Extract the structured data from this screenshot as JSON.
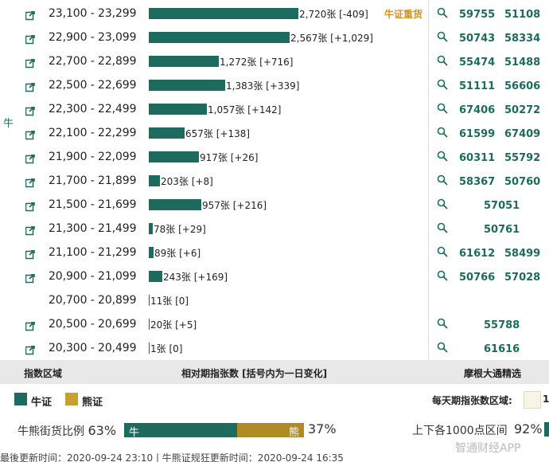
{
  "side_label": "牛",
  "rows": [
    {
      "range": "23,100 - 23,299",
      "bar_value": 2720,
      "bar_text": "2,720张 [-409]",
      "tag": "牛证重货",
      "codes": [
        "59755",
        "51108"
      ],
      "has_link": true,
      "has_search": true
    },
    {
      "range": "22,900 - 23,099",
      "bar_value": 2567,
      "bar_text": "2,567张 [+1,029]",
      "tag": "",
      "codes": [
        "50743",
        "58334"
      ],
      "has_link": true,
      "has_search": true
    },
    {
      "range": "22,700 - 22,899",
      "bar_value": 1272,
      "bar_text": "1,272张 [+716]",
      "tag": "",
      "codes": [
        "55474",
        "51488"
      ],
      "has_link": true,
      "has_search": true
    },
    {
      "range": "22,500 - 22,699",
      "bar_value": 1383,
      "bar_text": "1,383张 [+339]",
      "tag": "",
      "codes": [
        "51111",
        "56606"
      ],
      "has_link": true,
      "has_search": true
    },
    {
      "range": "22,300 - 22,499",
      "bar_value": 1057,
      "bar_text": "1,057张 [+142]",
      "tag": "",
      "codes": [
        "67406",
        "50272"
      ],
      "has_link": true,
      "has_search": true
    },
    {
      "range": "22,100 - 22,299",
      "bar_value": 657,
      "bar_text": "657张 [+138]",
      "tag": "",
      "codes": [
        "61599",
        "67409"
      ],
      "has_link": true,
      "has_search": true
    },
    {
      "range": "21,900 - 22,099",
      "bar_value": 917,
      "bar_text": "917张 [+26]",
      "tag": "",
      "codes": [
        "60311",
        "55792"
      ],
      "has_link": true,
      "has_search": true
    },
    {
      "range": "21,700 - 21,899",
      "bar_value": 203,
      "bar_text": "203张 [+8]",
      "tag": "",
      "codes": [
        "58367",
        "50760"
      ],
      "has_link": true,
      "has_search": true
    },
    {
      "range": "21,500 - 21,699",
      "bar_value": 957,
      "bar_text": "957张 [+216]",
      "tag": "",
      "codes": [
        "57051"
      ],
      "has_link": true,
      "has_search": true
    },
    {
      "range": "21,300 - 21,499",
      "bar_value": 78,
      "bar_text": "78张 [+29]",
      "tag": "",
      "codes": [
        "50761"
      ],
      "has_link": true,
      "has_search": true
    },
    {
      "range": "21,100 - 21,299",
      "bar_value": 89,
      "bar_text": "89张 [+6]",
      "tag": "",
      "codes": [
        "61612",
        "58499"
      ],
      "has_link": true,
      "has_search": true
    },
    {
      "range": "20,900 - 21,099",
      "bar_value": 243,
      "bar_text": "243张 [+169]",
      "tag": "",
      "codes": [
        "50766",
        "57028"
      ],
      "has_link": true,
      "has_search": true
    },
    {
      "range": "20,700 - 20,899",
      "bar_value": 11,
      "bar_text": "11张 [0]",
      "tag": "",
      "codes": [],
      "has_link": false,
      "has_search": false
    },
    {
      "range": "20,500 - 20,699",
      "bar_value": 20,
      "bar_text": "20张 [+5]",
      "tag": "",
      "codes": [
        "55788"
      ],
      "has_link": true,
      "has_search": true
    },
    {
      "range": "20,300 - 20,499",
      "bar_value": 1,
      "bar_text": "1张 [0]",
      "tag": "",
      "codes": [
        "61616"
      ],
      "has_link": true,
      "has_search": true
    }
  ],
  "bar_max_value": 2720,
  "header": {
    "col1": "指数区域",
    "col2": "相对期指张数 [括号内为一日变化]",
    "col3": "摩根大通精选"
  },
  "legend": {
    "bull_label": "牛证",
    "bear_label": "熊证",
    "bull_color": "#1d6b5f",
    "bear_color": "#c9a02e",
    "daily_label": "每天期指张数区域:",
    "daily_value": "1"
  },
  "ratio": {
    "label": "牛熊街货比例",
    "bull_pct": "63%",
    "bull_fraction": 0.63,
    "bull_text": "牛",
    "bear_text": "熊",
    "bear_pct": "37%",
    "range_label": "上下各1000点区间",
    "range_pct": "92%"
  },
  "footer": "最後更新时间：2020-09-24 23:10   |   牛熊证规狂更新时间：2020-09-24 16:35",
  "watermark": "智通财经APP"
}
